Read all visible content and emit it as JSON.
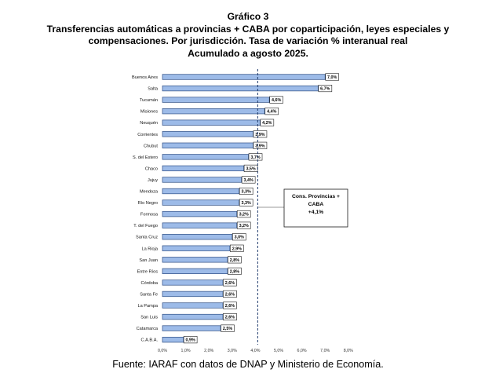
{
  "title": {
    "line1": "Gráfico 3",
    "line2": "Transferencias automáticas a provincias + CABA por coparticipación, leyes especiales y",
    "line3": "compensaciones. Por jurisdicción. Tasa de variación % interanual real",
    "line4": "Acumulado a agosto 2025."
  },
  "source": "Fuente: IARAF con datos de DNAP y Ministerio de Economía.",
  "colors": {
    "bar_fill": "#9dbbe8",
    "bar_stroke": "#2f4f85",
    "reference_line": "#1f3a6b"
  },
  "chart_data": {
    "type": "bar",
    "orientation": "horizontal",
    "categories": [
      "Buenos Aires",
      "Salta",
      "Tucumán",
      "Misiones",
      "Neuquén",
      "Corrientes",
      "Chubut",
      "S. del Estero",
      "Chaco",
      "Jujuy",
      "Mendoza",
      "Río Negro",
      "Formosa",
      "T. del Fuego",
      "Santa Cruz",
      "La Rioja",
      "San Juan",
      "Entre Ríos",
      "Córdoba",
      "Santa Fe",
      "La Pampa",
      "San Luis",
      "Catamarca",
      "C.A.B.A."
    ],
    "values": [
      7.0,
      6.7,
      4.6,
      4.4,
      4.2,
      3.9,
      3.9,
      3.7,
      3.5,
      3.4,
      3.3,
      3.3,
      3.2,
      3.2,
      3.0,
      2.9,
      2.8,
      2.8,
      2.6,
      2.6,
      2.6,
      2.6,
      2.5,
      0.9
    ],
    "value_labels": [
      "7,0%",
      "6,7%",
      "4,6%",
      "4,4%",
      "4,2%",
      "3,9%",
      "3,9%",
      "3,7%",
      "3,5%",
      "3,4%",
      "3,3%",
      "3,3%",
      "3,2%",
      "3,2%",
      "3,0%",
      "2,9%",
      "2,8%",
      "2,8%",
      "2,6%",
      "2,6%",
      "2,6%",
      "2,6%",
      "2,5%",
      "0,9%"
    ],
    "x_ticks": [
      0,
      1,
      2,
      3,
      4,
      5,
      6,
      7,
      8
    ],
    "x_tick_labels": [
      "0,0%",
      "1,0%",
      "2,0%",
      "3,0%",
      "4,0%",
      "5,0%",
      "6,0%",
      "7,0%",
      "8,0%"
    ],
    "xlim": [
      0,
      8
    ],
    "reference": {
      "value": 4.1,
      "label_lines": [
        "Cons. Provincias +",
        "CABA",
        "+4,1%"
      ]
    },
    "grid": false
  }
}
